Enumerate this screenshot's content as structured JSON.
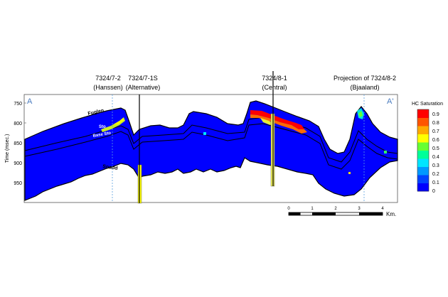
{
  "wells": [
    {
      "name": "7324/7-2",
      "sub": "(Hanssen)"
    },
    {
      "name": "7324/7-1S",
      "sub": "(Alternative)"
    },
    {
      "name": "7324/8-1",
      "sub": "(Central)"
    },
    {
      "name": "Projection of  7324/8-2",
      "sub": "(Bjaaland)"
    }
  ],
  "section": {
    "start_label": "A",
    "end_label": "A'"
  },
  "y_axis": {
    "label": "Time (msec.)",
    "ticks": [
      "750",
      "800",
      "850",
      "900",
      "950"
    ]
  },
  "horizons": {
    "fuglen": "Fuglen",
    "sto": "Sto",
    "base_sto": "Base Sto",
    "snadd": "Snadd"
  },
  "colorbar": {
    "title": "HC Saturation",
    "labels": [
      "0.9",
      "0.8",
      "0.7",
      "0.6",
      "0.5",
      "0.4",
      "0.3",
      "0.2",
      "0.1",
      "0"
    ],
    "colors": [
      "#0000ff",
      "#0044ff",
      "#0099ff",
      "#00e5ff",
      "#00ff99",
      "#66ff33",
      "#ffff00",
      "#ffaa00",
      "#ff5500",
      "#ff0000"
    ]
  },
  "scale_bar": {
    "ticks": [
      "0",
      "1",
      "2",
      "3",
      "4"
    ],
    "unit": "Km."
  },
  "colors": {
    "body": "#0000ff",
    "outline": "#000000",
    "axis_accent": "#4a7bbf",
    "projection_line": "#5aa0e0"
  }
}
